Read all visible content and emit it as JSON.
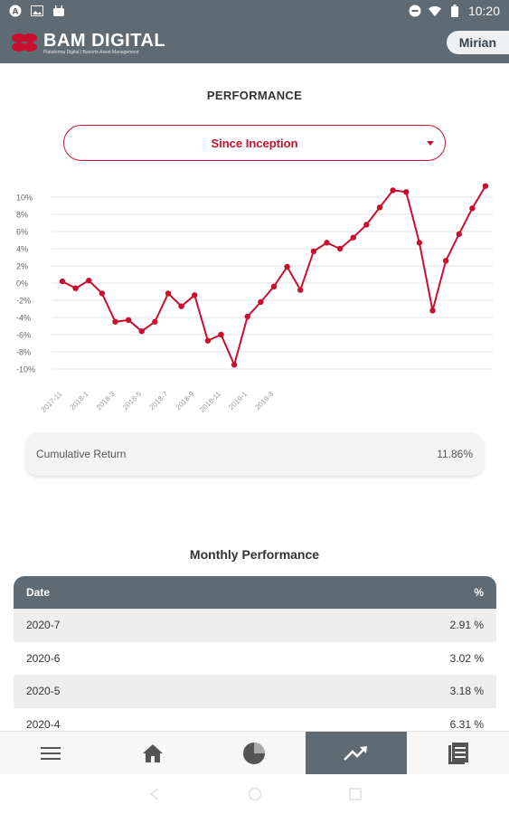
{
  "status_bar": {
    "time": "10:20"
  },
  "header": {
    "brand": "BAM DIGITAL",
    "tagline": "Plataforma Digital | Banorte Asset Management",
    "user": "Mirian"
  },
  "performance": {
    "title": "PERFORMANCE",
    "period": "Since Inception"
  },
  "chart_data": {
    "type": "line",
    "x": [
      "2017-11",
      "2017-12",
      "2018-1",
      "2018-2",
      "2018-3",
      "2018-4",
      "2018-5",
      "2018-6",
      "2018-7",
      "2018-8",
      "2018-9",
      "2018-10",
      "2018-11",
      "2018-12",
      "2019-1",
      "2019-2",
      "2019-3",
      "2019-4",
      "2019-5",
      "2019-6",
      "2019-7",
      "2019-8",
      "2019-9",
      "2019-10",
      "2019-11",
      "2019-12",
      "2020-1",
      "2020-2",
      "2020-3",
      "2020-4",
      "2020-5",
      "2020-6",
      "2020-7"
    ],
    "x_ticks": [
      "2017-11",
      "2018-1",
      "2018-3",
      "2018-5",
      "2018-7",
      "2018-9",
      "2018-11",
      "2019-1",
      "2019-3"
    ],
    "series": [
      {
        "values": [
          0.2,
          -0.6,
          0.3,
          -1.2,
          -4.5,
          -4.3,
          -5.6,
          -4.5,
          -1.2,
          -2.7,
          -1.4,
          -6.7,
          -6.0,
          -9.5,
          -3.9,
          -2.2,
          -0.4,
          1.9,
          -0.8,
          3.7,
          4.7,
          4.0,
          5.3,
          6.8,
          8.8,
          10.8,
          10.6,
          4.7,
          -3.2,
          2.6,
          5.7,
          8.7,
          11.3
        ]
      }
    ],
    "ylim": [
      -10,
      10
    ],
    "y_ticks": [
      -10,
      -8,
      -6,
      -4,
      -2,
      0,
      2,
      4,
      6,
      8,
      10
    ],
    "color": "#c8102e",
    "grid": true
  },
  "cumulative": {
    "label": "Cumulative Return",
    "value": "11.86%"
  },
  "monthly": {
    "title": "Monthly Performance",
    "col_date": "Date",
    "col_pct": "%",
    "rows": [
      {
        "date": "2020-7",
        "value": "2.91 %"
      },
      {
        "date": "2020-6",
        "value": "3.02 %"
      },
      {
        "date": "2020-5",
        "value": "3.18 %"
      },
      {
        "date": "2020-4",
        "value": "6.31 %"
      }
    ]
  },
  "nav": {
    "items": [
      "menu-icon",
      "home-icon",
      "pie-chart-icon",
      "trending-up-icon",
      "document-icon"
    ],
    "active": "trending-up-icon"
  },
  "colors": {
    "accent": "#c8102e",
    "header": "#5f6b74"
  }
}
